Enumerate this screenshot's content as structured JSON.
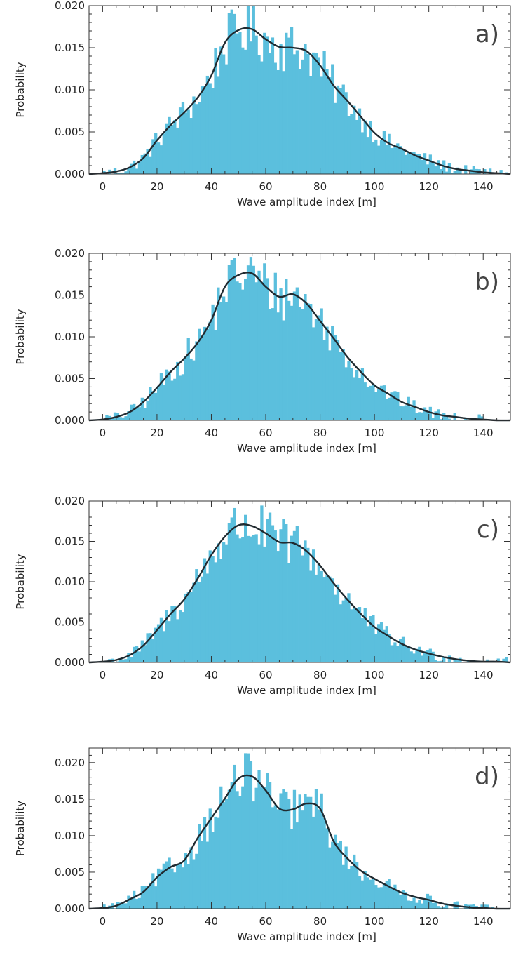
{
  "chart_data": [
    {
      "type": "bar",
      "panel_label": "a)",
      "xlabel": "Wave amplitude index [m]",
      "ylabel": "Probability",
      "xlim": [
        -5,
        150
      ],
      "ylim": [
        0,
        0.02
      ],
      "xticks": [
        "0",
        "20",
        "40",
        "60",
        "80",
        "100",
        "120",
        "140"
      ],
      "yticks": [
        "0.000",
        "0.005",
        "0.010",
        "0.015",
        "0.020"
      ],
      "bar_color": "#5bbfdd",
      "curve_color": "#202a30",
      "density_curve": {
        "x": [
          -5,
          0,
          5,
          10,
          15,
          20,
          25,
          30,
          35,
          40,
          45,
          50,
          55,
          60,
          65,
          70,
          75,
          80,
          85,
          90,
          95,
          100,
          105,
          110,
          115,
          120,
          125,
          130,
          135,
          140,
          145,
          150
        ],
        "y": [
          0.0,
          0.0001,
          0.0003,
          0.0008,
          0.0019,
          0.004,
          0.0058,
          0.0073,
          0.0091,
          0.0117,
          0.0156,
          0.0171,
          0.0172,
          0.016,
          0.0151,
          0.015,
          0.0146,
          0.0129,
          0.0105,
          0.0087,
          0.0068,
          0.0049,
          0.0037,
          0.003,
          0.0022,
          0.0016,
          0.001,
          0.0006,
          0.0004,
          0.0002,
          0.0001,
          0.0
        ]
      }
    },
    {
      "type": "bar",
      "panel_label": "b)",
      "xlabel": "Wave amplitude index [m]",
      "ylabel": "Probability",
      "xlim": [
        -5,
        150
      ],
      "ylim": [
        0,
        0.02
      ],
      "xticks": [
        "0",
        "20",
        "40",
        "60",
        "80",
        "100",
        "120",
        "140"
      ],
      "yticks": [
        "0.000",
        "0.005",
        "0.010",
        "0.015",
        "0.020"
      ],
      "bar_color": "#5bbfdd",
      "curve_color": "#202a30",
      "density_curve": {
        "x": [
          -5,
          0,
          5,
          10,
          15,
          20,
          25,
          30,
          35,
          40,
          45,
          50,
          55,
          60,
          65,
          70,
          75,
          80,
          85,
          90,
          95,
          100,
          105,
          110,
          115,
          120,
          125,
          130,
          135,
          140,
          145,
          150
        ],
        "y": [
          0.0,
          0.0001,
          0.0004,
          0.001,
          0.0022,
          0.0039,
          0.0058,
          0.0074,
          0.0093,
          0.012,
          0.016,
          0.0174,
          0.0176,
          0.016,
          0.0148,
          0.0151,
          0.014,
          0.0119,
          0.0098,
          0.0076,
          0.0058,
          0.0042,
          0.0032,
          0.0022,
          0.0016,
          0.001,
          0.0006,
          0.0004,
          0.0002,
          0.0001,
          0.0,
          0.0
        ]
      }
    },
    {
      "type": "bar",
      "panel_label": "c)",
      "xlabel": "Wave amplitude index [m]",
      "ylabel": "Probability",
      "xlim": [
        -5,
        150
      ],
      "ylim": [
        0,
        0.02
      ],
      "xticks": [
        "0",
        "20",
        "40",
        "60",
        "80",
        "100",
        "120",
        "140"
      ],
      "yticks": [
        "0.000",
        "0.005",
        "0.010",
        "0.015",
        "0.020"
      ],
      "bar_color": "#5bbfdd",
      "curve_color": "#202a30",
      "density_curve": {
        "x": [
          -5,
          0,
          5,
          10,
          15,
          20,
          25,
          30,
          35,
          40,
          45,
          50,
          55,
          60,
          65,
          70,
          75,
          80,
          85,
          90,
          95,
          100,
          105,
          110,
          115,
          120,
          125,
          130,
          135,
          140,
          145,
          150
        ],
        "y": [
          0.0,
          0.0001,
          0.0003,
          0.0009,
          0.0021,
          0.004,
          0.006,
          0.0078,
          0.0104,
          0.0133,
          0.0156,
          0.017,
          0.0169,
          0.016,
          0.0149,
          0.0148,
          0.0138,
          0.012,
          0.0098,
          0.0078,
          0.006,
          0.0044,
          0.0033,
          0.0023,
          0.0016,
          0.0011,
          0.0007,
          0.0004,
          0.0002,
          0.0001,
          0.0001,
          0.0
        ]
      }
    },
    {
      "type": "bar",
      "panel_label": "d)",
      "xlabel": "Wave amplitude index [m]",
      "ylabel": "Probability",
      "xlim": [
        -5,
        150
      ],
      "ylim": [
        0,
        0.022
      ],
      "xticks": [
        "0",
        "20",
        "40",
        "60",
        "80",
        "100",
        "120",
        "140"
      ],
      "yticks": [
        "0.000",
        "0.005",
        "0.010",
        "0.015",
        "0.020"
      ],
      "bar_color": "#5bbfdd",
      "curve_color": "#202a30",
      "density_curve": {
        "x": [
          -5,
          0,
          5,
          10,
          15,
          20,
          25,
          30,
          35,
          40,
          45,
          50,
          55,
          60,
          65,
          70,
          75,
          80,
          85,
          90,
          95,
          100,
          105,
          110,
          115,
          120,
          125,
          130,
          135,
          140,
          145,
          150
        ],
        "y": [
          0.0,
          0.0001,
          0.0004,
          0.0013,
          0.0023,
          0.0043,
          0.0057,
          0.0066,
          0.0097,
          0.0124,
          0.0151,
          0.0178,
          0.0181,
          0.0162,
          0.0137,
          0.0136,
          0.0144,
          0.0137,
          0.0092,
          0.0069,
          0.0052,
          0.0041,
          0.0031,
          0.0022,
          0.0016,
          0.0012,
          0.0007,
          0.0004,
          0.0002,
          0.0001,
          0.0,
          0.0
        ]
      }
    }
  ]
}
